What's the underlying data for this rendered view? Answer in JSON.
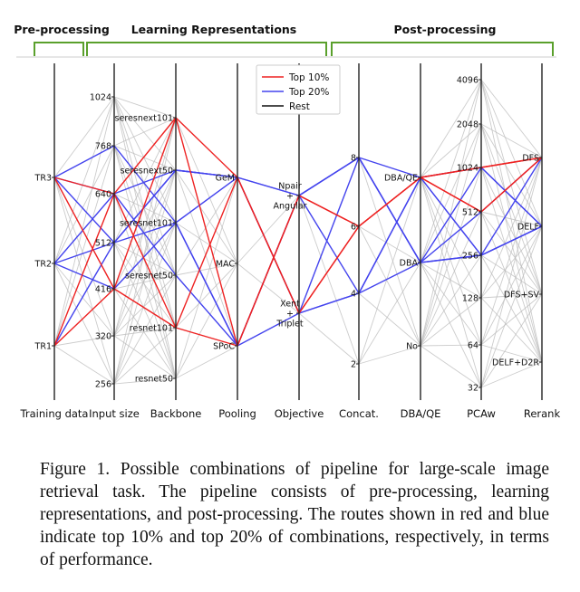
{
  "stages": [
    {
      "id": "pre",
      "label": "Pre-processing"
    },
    {
      "id": "learn",
      "label": "Learning Representations"
    },
    {
      "id": "post",
      "label": "Post-processing"
    }
  ],
  "chart_data": {
    "type": "parallel-coordinates",
    "colors": {
      "top10": "#ee2222",
      "top20": "#4444ee",
      "rest": "#bbbbbb",
      "axis": "#222222",
      "stage": "#5aa02c"
    },
    "legend": {
      "placement": "top-center",
      "entries": [
        {
          "key": "top10",
          "label": "Top 10%"
        },
        {
          "key": "top20",
          "label": "Top 20%"
        },
        {
          "key": "rest",
          "label": "Rest"
        }
      ]
    },
    "axes": [
      {
        "id": "train",
        "name": "Training data",
        "ticks": [
          "TR1",
          "TR2",
          "TR3"
        ]
      },
      {
        "id": "size",
        "name": "Input size",
        "ticks": [
          "256",
          "320",
          "416",
          "512",
          "640",
          "768",
          "1024"
        ]
      },
      {
        "id": "backbone",
        "name": "Backbone",
        "ticks": [
          "resnet50",
          "resnet101",
          "seresnet50",
          "seresnet101",
          "seresnext50",
          "seresnext101"
        ]
      },
      {
        "id": "pool",
        "name": "Pooling",
        "ticks": [
          "SPoC",
          "MAC",
          "GeM"
        ]
      },
      {
        "id": "obj",
        "name": "Objective",
        "ticks": [
          "Xent\n+\nTriplet",
          "Npair\n+\nAngular"
        ]
      },
      {
        "id": "concat",
        "name": "Concat.",
        "ticks": [
          "2",
          "4",
          "6",
          "8"
        ]
      },
      {
        "id": "dba",
        "name": "DBA/QE",
        "ticks": [
          "No",
          "DBA",
          "DBA/QE"
        ]
      },
      {
        "id": "pcaw",
        "name": "PCAw",
        "ticks": [
          "32",
          "64",
          "128",
          "256",
          "512",
          "1024",
          "2048",
          "4096"
        ]
      },
      {
        "id": "rerank",
        "name": "Rerank",
        "ticks": [
          "DELF+D2R",
          "DFS+SV",
          "DELF",
          "DFS"
        ]
      }
    ],
    "routes_top10": [
      [
        "TR1",
        "416",
        "seresnext101",
        "GeM",
        "Xent\n+\nTriplet",
        "6",
        "DBA/QE",
        "512",
        "DFS"
      ],
      [
        "TR3",
        "416",
        "resnet101",
        "SPoC",
        "Npair\n+\nAngular",
        "6",
        "DBA/QE",
        "1024",
        "DFS"
      ],
      [
        "TR3",
        "640",
        "resnet101",
        "GeM",
        "Xent\n+\nTriplet",
        "6",
        "DBA/QE",
        "512",
        "DFS"
      ],
      [
        "TR1",
        "640",
        "seresnext101",
        "SPoC",
        "Npair\n+\nAngular",
        "6",
        "DBA/QE",
        "1024",
        "DFS"
      ]
    ],
    "routes_top20": [
      [
        "TR2",
        "512",
        "seresnext50",
        "GeM",
        "Npair\n+\nAngular",
        "8",
        "DBA",
        "1024",
        "DELF"
      ],
      [
        "TR3",
        "512",
        "seresnet101",
        "SPoC",
        "Xent\n+\nTriplet",
        "4",
        "DBA",
        "256",
        "DFS"
      ],
      [
        "TR2",
        "640",
        "seresnet50",
        "SPoC",
        "Npair\n+\nAngular",
        "8",
        "DBA/QE",
        "256",
        "DELF"
      ],
      [
        "TR3",
        "768",
        "seresnet101",
        "GeM",
        "Npair\n+\nAngular",
        "4",
        "DBA/QE",
        "1024",
        "DELF"
      ],
      [
        "TR1",
        "512",
        "seresnext50",
        "GeM",
        "Xent\n+\nTriplet",
        "8",
        "DBA",
        "512",
        "DFS"
      ],
      [
        "TR2",
        "416",
        "seresnet101",
        "SPoC",
        "Npair\n+\nAngular",
        "8",
        "DBA",
        "256",
        "DELF"
      ],
      [
        "TR3",
        "640",
        "seresnext50",
        "GeM",
        "Xent\n+\nTriplet",
        "4",
        "DBA/QE",
        "256",
        "DELF"
      ]
    ]
  },
  "caption": {
    "label": "Figure 1.",
    "text": "Possible combinations of pipeline for large-scale image retrieval task. The pipeline consists of pre-processing, learning representations, and post-processing. The routes shown in red and blue indicate top 10% and top 20% of combinations, respectively, in terms of performance."
  }
}
